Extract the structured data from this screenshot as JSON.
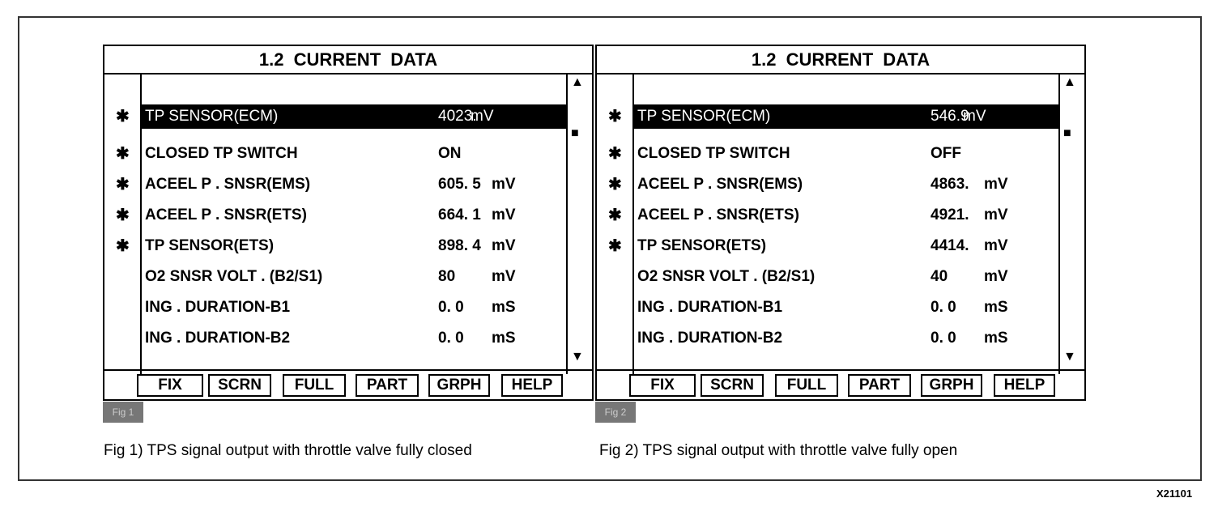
{
  "panels": [
    {
      "title": "1.2  CURRENT  DATA",
      "tag": "Fig 1",
      "rows": [
        {
          "star": "✱",
          "name": "TP SENSOR(ECM)",
          "value": "4023.",
          "unit": "mV",
          "selected": true
        },
        {
          "star": "✱",
          "name": "CLOSED TP SWITCH",
          "value": "ON",
          "unit": ""
        },
        {
          "star": "✱",
          "name": "ACEEL  P . SNSR(EMS)",
          "value": "605. 5",
          "unit": "mV"
        },
        {
          "star": "✱",
          "name": "ACEEL  P . SNSR(ETS)",
          "value": "664. 1",
          "unit": "mV"
        },
        {
          "star": "✱",
          "name": "TP SENSOR(ETS)",
          "value": "898. 4",
          "unit": "mV"
        },
        {
          "star": "",
          "name": "O2 SNSR VOLT . (B2/S1)",
          "value": "80",
          "unit": "mV"
        },
        {
          "star": "",
          "name": "ING . DURATION-B1",
          "value": "0. 0",
          "unit": "mS"
        },
        {
          "star": "",
          "name": "ING . DURATION-B2",
          "value": "0. 0",
          "unit": "mS"
        }
      ],
      "caption": "Fig 1) TPS signal output with throttle valve fully closed"
    },
    {
      "title": "1.2  CURRENT  DATA",
      "tag": "Fig 2",
      "rows": [
        {
          "star": "✱",
          "name": "TP SENSOR(ECM)",
          "value": "546.9",
          "unit": "mV",
          "selected": true
        },
        {
          "star": "✱",
          "name": "CLOSED TP SWITCH",
          "value": "OFF",
          "unit": ""
        },
        {
          "star": "✱",
          "name": "ACEEL  P . SNSR(EMS)",
          "value": "4863.",
          "unit": "mV"
        },
        {
          "star": "✱",
          "name": "ACEEL  P . SNSR(ETS)",
          "value": "4921.",
          "unit": "mV"
        },
        {
          "star": "✱",
          "name": "TP SENSOR(ETS)",
          "value": "4414.",
          "unit": "mV"
        },
        {
          "star": "",
          "name": "O2 SNSR VOLT . (B2/S1)",
          "value": "40",
          "unit": "mV"
        },
        {
          "star": "",
          "name": "ING . DURATION-B1",
          "value": "0. 0",
          "unit": "mS"
        },
        {
          "star": "",
          "name": "ING . DURATION-B2",
          "value": "0. 0",
          "unit": "mS"
        }
      ],
      "caption": "Fig 2) TPS signal output with throttle valve fully open"
    }
  ],
  "buttons": [
    "FIX",
    "SCRN",
    "FULL",
    "PART",
    "GRPH",
    "HELP"
  ],
  "icons": {
    "scroll_up": "triangle-up",
    "scroll_thumb": "square",
    "scroll_down": "triangle-down",
    "marker": "asterisk"
  },
  "figure_code": "X21101"
}
